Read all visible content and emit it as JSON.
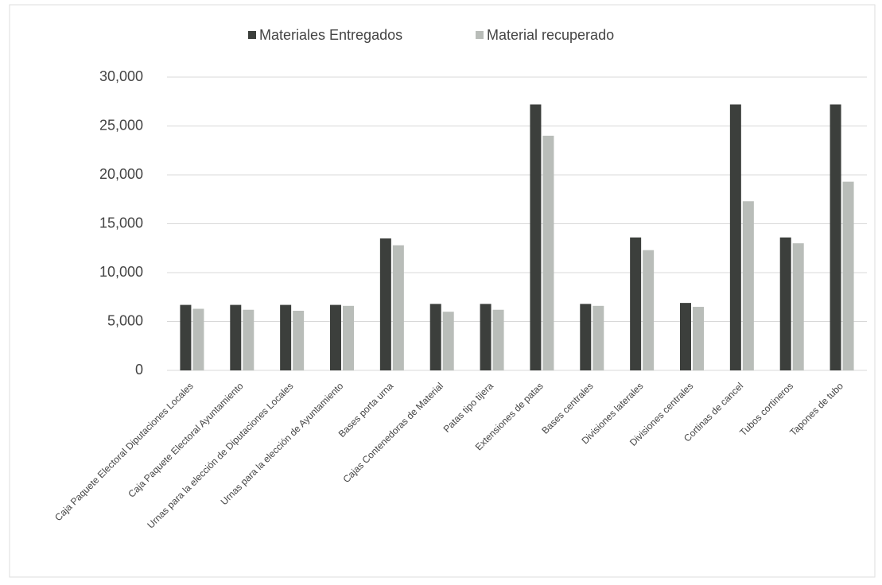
{
  "chart_data": {
    "type": "bar",
    "categories": [
      "Caja Paquete Electoral Diputaciones Locales",
      "Caja Paquete Electoral Ayuntamiento",
      "Urnas para la elección de Diputaciones Locales",
      "Urnas para la elección de Ayuntamiento",
      "Bases porta urna",
      "Cajas Contenedoras de Material",
      "Patas tipo tijera",
      "Extensiones de patas",
      "Bases centrales",
      "Divisiones laterales",
      "Divisiones centrales",
      "Cortinas de cancel",
      "Tubos cortineros",
      "Tapones de tubo"
    ],
    "series": [
      {
        "name": "Materiales Entregados",
        "color": "#3c3f3c",
        "values": [
          6700,
          6700,
          6700,
          6700,
          13500,
          6800,
          6800,
          27200,
          6800,
          13600,
          6900,
          27200,
          13600,
          27200
        ]
      },
      {
        "name": "Material recuperado",
        "color": "#b9bdb9",
        "values": [
          6300,
          6200,
          6100,
          6600,
          12800,
          6000,
          6200,
          24000,
          6600,
          12300,
          6500,
          17300,
          13000,
          19300
        ]
      }
    ],
    "ylim": [
      0,
      30000
    ],
    "yticks": [
      0,
      {
        "value": 5000,
        "label": "5,000"
      },
      {
        "value": 10000,
        "label": "10,000"
      },
      {
        "value": 15000,
        "label": "15,000"
      },
      {
        "value": 20000,
        "label": "20,000"
      },
      {
        "value": 25000,
        "label": "25,000"
      },
      {
        "value": 30000,
        "label": "30,000"
      }
    ],
    "grid": true,
    "legend": "top"
  }
}
